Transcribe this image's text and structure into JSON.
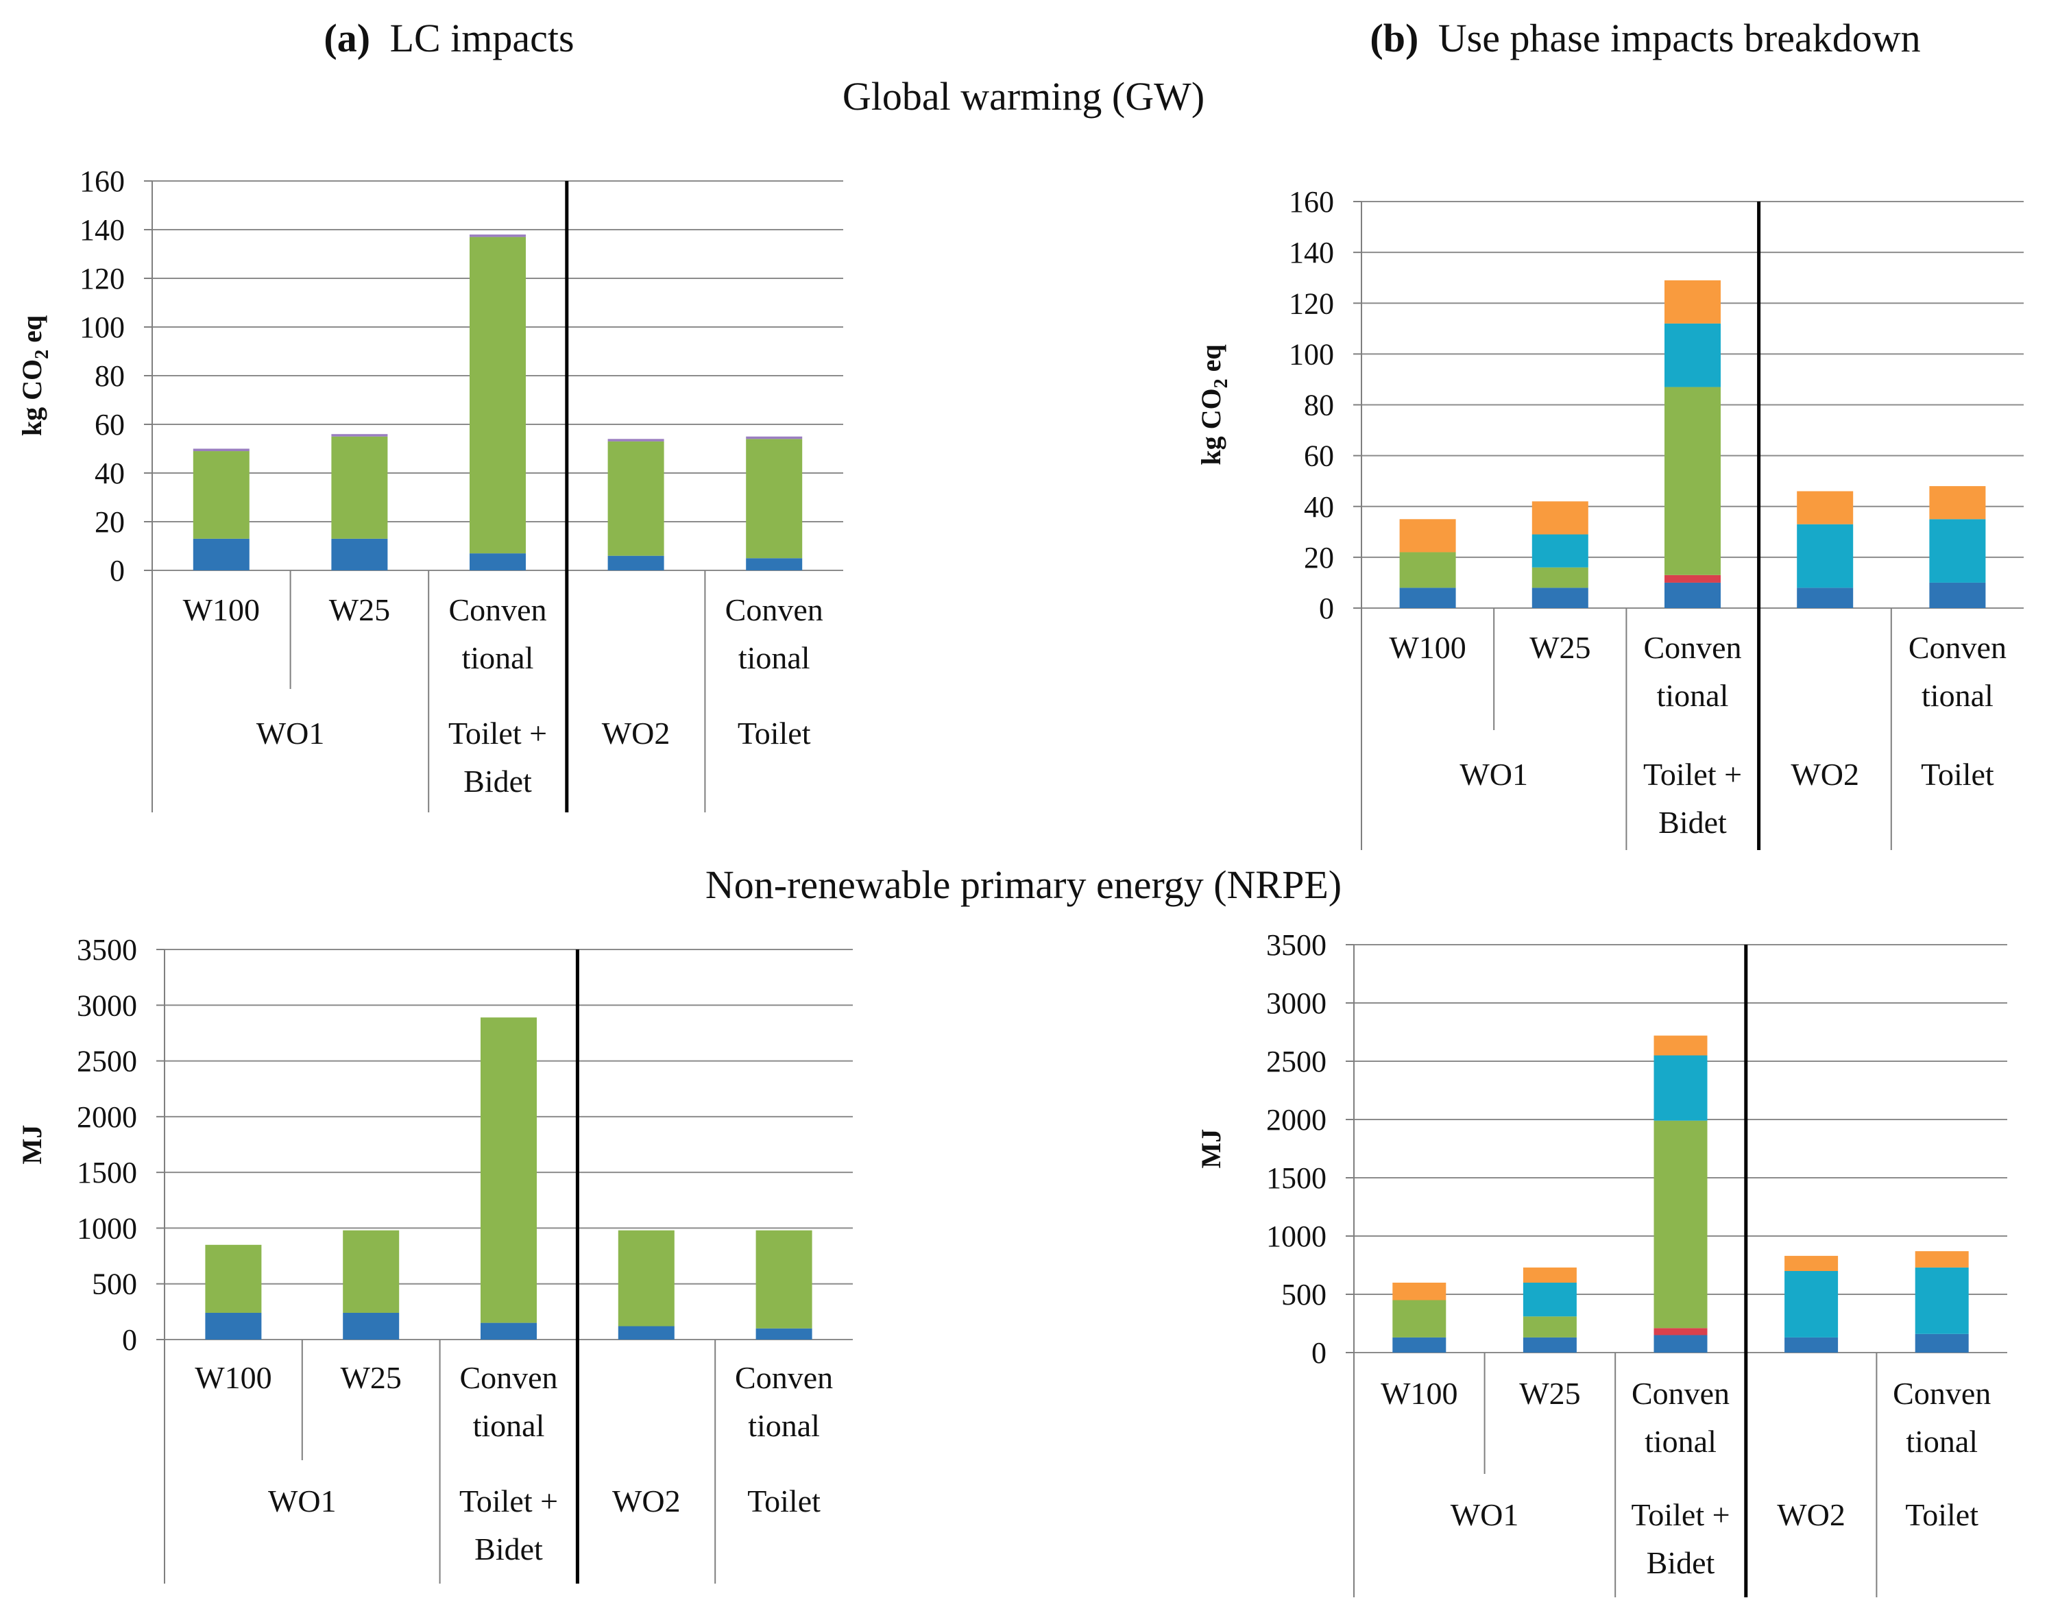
{
  "headers": {
    "panel_a_letter": "(a)",
    "panel_a_title": "LC impacts",
    "panel_b_letter": "(b)",
    "panel_b_title": "Use phase impacts breakdown",
    "row1_title": "Global warming (GW)",
    "row2_title": "Non-renewable primary energy (NRPE)"
  },
  "colors": {
    "blue": "#2e75b6",
    "red": "#d9414d",
    "green": "#8cb64e",
    "cyan": "#17a9c9",
    "orange": "#f99b3e",
    "purple": "#9a7ec0",
    "grid": "#8c8c8c",
    "axis": "#7f7f7f",
    "divider": "#000000"
  },
  "chart_data": [
    {
      "id": "gw_lc",
      "type": "bar",
      "stacked": true,
      "title": "(a) LC impacts — Global warming (GW)",
      "ylabel": "kg CO2 eq",
      "ylabel_main": "kg CO",
      "ylabel_sub": "2",
      "ylabel_tail": " eq",
      "ylim": [
        0,
        160
      ],
      "yticks": [
        "0",
        "20",
        "40",
        "60",
        "80",
        "100",
        "120",
        "140",
        "160"
      ],
      "categories": [
        "W100",
        "W25",
        "Conventional",
        "WO2",
        "Conventional"
      ],
      "category_lines": [
        [
          "W100"
        ],
        [
          "W25"
        ],
        [
          "Conven",
          "tional"
        ],
        [
          ""
        ],
        [
          "Conven",
          "tional"
        ]
      ],
      "groups": [
        {
          "lines": [
            "WO1"
          ],
          "span": 2
        },
        {
          "lines": [
            "Toilet +",
            "Bidet"
          ],
          "span": 1
        },
        {
          "lines": [
            "WO2"
          ],
          "span": 1
        },
        {
          "lines": [
            "Toilet"
          ],
          "span": 1
        }
      ],
      "series": [
        {
          "name": "Blue component",
          "color": "blue",
          "values": [
            13,
            13,
            7,
            6,
            5
          ]
        },
        {
          "name": "Green component",
          "color": "green",
          "values": [
            36,
            42,
            130,
            47,
            49
          ]
        },
        {
          "name": "Top component",
          "color": "purple",
          "values": [
            1,
            1,
            1,
            1,
            1
          ]
        }
      ]
    },
    {
      "id": "gw_use",
      "type": "bar",
      "stacked": true,
      "title": "(b) Use phase impacts breakdown — Global warming (GW)",
      "ylabel": "kg CO2 eq",
      "ylabel_main": "kg CO",
      "ylabel_sub": "2",
      "ylabel_tail": " eq",
      "ylim": [
        0,
        160
      ],
      "yticks": [
        "0",
        "20",
        "40",
        "60",
        "80",
        "100",
        "120",
        "140",
        "160"
      ],
      "categories": [
        "W100",
        "W25",
        "Conventional",
        "WO2",
        "Conventional"
      ],
      "category_lines": [
        [
          "W100"
        ],
        [
          "W25"
        ],
        [
          "Conven",
          "tional"
        ],
        [
          ""
        ],
        [
          "Conven",
          "tional"
        ]
      ],
      "groups": [
        {
          "lines": [
            "WO1"
          ],
          "span": 2
        },
        {
          "lines": [
            "Toilet +",
            "Bidet"
          ],
          "span": 1
        },
        {
          "lines": [
            "WO2"
          ],
          "span": 1
        },
        {
          "lines": [
            "Toilet"
          ],
          "span": 1
        }
      ],
      "series": [
        {
          "name": "Blue component",
          "color": "blue",
          "values": [
            8,
            8,
            10,
            8,
            10
          ]
        },
        {
          "name": "Red component",
          "color": "red",
          "values": [
            0,
            0,
            3,
            0,
            0
          ]
        },
        {
          "name": "Green component",
          "color": "green",
          "values": [
            14,
            8,
            74,
            0,
            0
          ]
        },
        {
          "name": "Cyan component",
          "color": "cyan",
          "values": [
            0,
            13,
            25,
            25,
            25
          ]
        },
        {
          "name": "Orange component",
          "color": "orange",
          "values": [
            13,
            13,
            17,
            13,
            13
          ]
        }
      ]
    },
    {
      "id": "nrpe_lc",
      "type": "bar",
      "stacked": true,
      "title": "(a) LC impacts — Non-renewable primary energy (NRPE)",
      "ylabel": "MJ",
      "ylabel_main": "MJ",
      "ylim": [
        0,
        3500
      ],
      "yticks": [
        "0",
        "500",
        "1000",
        "1500",
        "2000",
        "2500",
        "3000",
        "3500"
      ],
      "categories": [
        "W100",
        "W25",
        "Conventional",
        "WO2",
        "Conventional"
      ],
      "category_lines": [
        [
          "W100"
        ],
        [
          "W25"
        ],
        [
          "Conven",
          "tional"
        ],
        [
          ""
        ],
        [
          "Conven",
          "tional"
        ]
      ],
      "groups": [
        {
          "lines": [
            "WO1"
          ],
          "span": 2
        },
        {
          "lines": [
            "Toilet +",
            "Bidet"
          ],
          "span": 1
        },
        {
          "lines": [
            "WO2"
          ],
          "span": 1
        },
        {
          "lines": [
            "Toilet"
          ],
          "span": 1
        }
      ],
      "series": [
        {
          "name": "Blue component",
          "color": "blue",
          "values": [
            240,
            240,
            150,
            120,
            100
          ]
        },
        {
          "name": "Green component",
          "color": "green",
          "values": [
            610,
            740,
            2740,
            860,
            880
          ]
        }
      ]
    },
    {
      "id": "nrpe_use",
      "type": "bar",
      "stacked": true,
      "title": "(b) Use phase impacts breakdown — Non-renewable primary energy (NRPE)",
      "ylabel": "MJ",
      "ylabel_main": "MJ",
      "ylim": [
        0,
        3500
      ],
      "yticks": [
        "0",
        "500",
        "1000",
        "1500",
        "2000",
        "2500",
        "3000",
        "3500"
      ],
      "categories": [
        "W100",
        "W25",
        "Conventional",
        "WO2",
        "Conventional"
      ],
      "category_lines": [
        [
          "W100"
        ],
        [
          "W25"
        ],
        [
          "Conven",
          "tional"
        ],
        [
          ""
        ],
        [
          "Conven",
          "tional"
        ]
      ],
      "groups": [
        {
          "lines": [
            "WO1"
          ],
          "span": 2
        },
        {
          "lines": [
            "Toilet +",
            "Bidet"
          ],
          "span": 1
        },
        {
          "lines": [
            "WO2"
          ],
          "span": 1
        },
        {
          "lines": [
            "Toilet"
          ],
          "span": 1
        }
      ],
      "series": [
        {
          "name": "Blue component",
          "color": "blue",
          "values": [
            130,
            130,
            150,
            130,
            160
          ]
        },
        {
          "name": "Red component",
          "color": "red",
          "values": [
            0,
            0,
            60,
            0,
            0
          ]
        },
        {
          "name": "Green component",
          "color": "green",
          "values": [
            320,
            180,
            1780,
            0,
            0
          ]
        },
        {
          "name": "Cyan component",
          "color": "cyan",
          "values": [
            0,
            290,
            560,
            570,
            570
          ]
        },
        {
          "name": "Orange component",
          "color": "orange",
          "values": [
            150,
            130,
            170,
            130,
            140
          ]
        }
      ]
    }
  ]
}
